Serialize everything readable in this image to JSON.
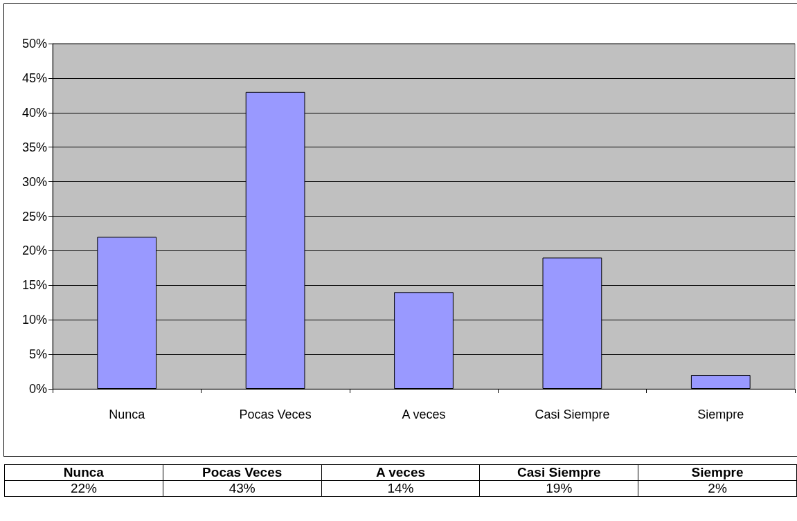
{
  "chart_data": {
    "type": "bar",
    "categories": [
      "Nunca",
      "Pocas Veces",
      "A veces",
      "Casi Siempre",
      "Siempre"
    ],
    "values": [
      22,
      43,
      14,
      19,
      2
    ],
    "value_labels": [
      "22%",
      "43%",
      "14%",
      "19%",
      "2%"
    ],
    "color": "#9999ff",
    "ylim": [
      0,
      50
    ],
    "yticks": [
      {
        "value": 0,
        "label": "0%"
      },
      {
        "value": 5,
        "label": "5%"
      },
      {
        "value": 10,
        "label": "10%"
      },
      {
        "value": 15,
        "label": "15%"
      },
      {
        "value": 20,
        "label": "20%"
      },
      {
        "value": 25,
        "label": "25%"
      },
      {
        "value": 30,
        "label": "30%"
      },
      {
        "value": 35,
        "label": "35%"
      },
      {
        "value": 40,
        "label": "40%"
      },
      {
        "value": 45,
        "label": "45%"
      },
      {
        "value": 50,
        "label": "50%"
      }
    ],
    "grid": "y"
  }
}
